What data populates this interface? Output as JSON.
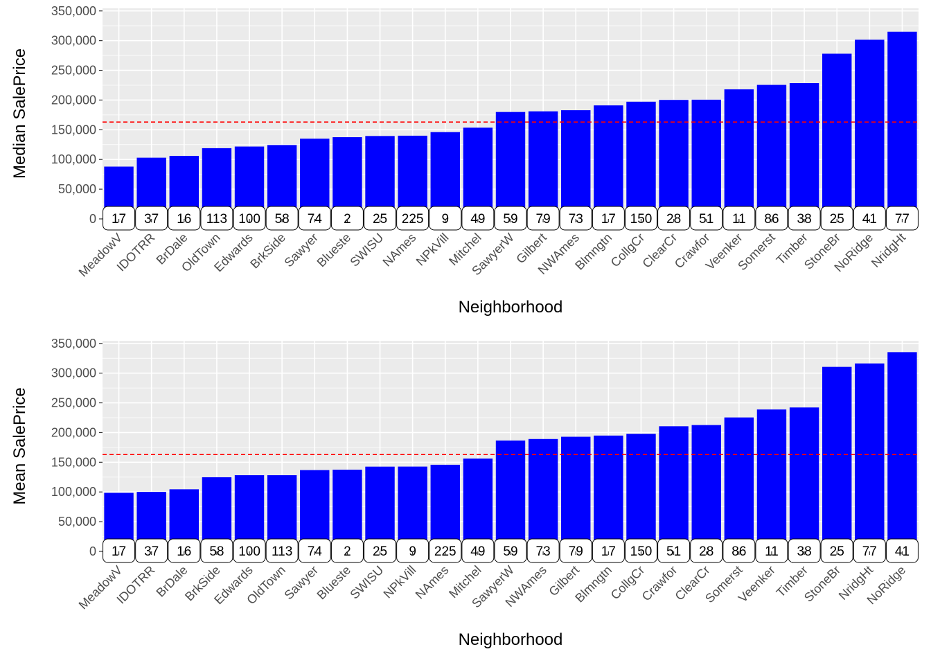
{
  "chart_data": [
    {
      "type": "bar",
      "xlabel": "Neighborhood",
      "ylabel": "Median SalePrice",
      "ylim": [
        0,
        350000
      ],
      "y_ticks": [
        "0",
        "50,000",
        "100,000",
        "150,000",
        "200,000",
        "250,000",
        "300,000",
        "350,000"
      ],
      "y_tick_values": [
        0,
        50000,
        100000,
        150000,
        200000,
        250000,
        300000,
        350000
      ],
      "reference_line": {
        "y": 163000,
        "color": "#ff0000",
        "style": "dashed"
      },
      "bar_color": "#0000ff",
      "grid": true,
      "categories": [
        "MeadowV",
        "IDOTRR",
        "BrDale",
        "OldTown",
        "Edwards",
        "BrkSide",
        "Sawyer",
        "Blueste",
        "SWISU",
        "NAmes",
        "NPkVill",
        "Mitchel",
        "SawyerW",
        "Gilbert",
        "NWAmes",
        "Blmngtn",
        "CollgCr",
        "ClearCr",
        "Crawfor",
        "Veenker",
        "Somerst",
        "Timber",
        "StoneBr",
        "NoRidge",
        "NridgHt"
      ],
      "values": [
        88000,
        103000,
        106000,
        119000,
        121750,
        124300,
        135000,
        137500,
        139500,
        140000,
        146000,
        153500,
        179900,
        181000,
        182900,
        191000,
        197200,
        200250,
        200624,
        218000,
        225500,
        228475,
        278000,
        301500,
        315000
      ],
      "labels": [
        "17",
        "37",
        "16",
        "113",
        "100",
        "58",
        "74",
        "2",
        "25",
        "225",
        "9",
        "49",
        "59",
        "79",
        "73",
        "17",
        "150",
        "28",
        "51",
        "11",
        "86",
        "38",
        "25",
        "41",
        "77"
      ]
    },
    {
      "type": "bar",
      "xlabel": "Neighborhood",
      "ylabel": "Mean SalePrice",
      "ylim": [
        0,
        350000
      ],
      "y_ticks": [
        "0",
        "50,000",
        "100,000",
        "150,000",
        "200,000",
        "250,000",
        "300,000",
        "350,000"
      ],
      "y_tick_values": [
        0,
        50000,
        100000,
        150000,
        200000,
        250000,
        300000,
        350000
      ],
      "reference_line": {
        "y": 163000,
        "color": "#ff0000",
        "style": "dashed"
      },
      "bar_color": "#0000ff",
      "grid": true,
      "categories": [
        "MeadowV",
        "IDOTRR",
        "BrDale",
        "BrkSide",
        "Edwards",
        "OldTown",
        "Sawyer",
        "Blueste",
        "SWISU",
        "NPkVill",
        "NAmes",
        "Mitchel",
        "SawyerW",
        "NWAmes",
        "Gilbert",
        "Blmngtn",
        "CollgCr",
        "Crawfor",
        "ClearCr",
        "Somerst",
        "Veenker",
        "Timber",
        "StoneBr",
        "NridgHt",
        "NoRidge"
      ],
      "values": [
        98600,
        100100,
        104500,
        124800,
        128200,
        128200,
        136800,
        137500,
        142600,
        142700,
        145800,
        156300,
        186600,
        189100,
        192900,
        194900,
        197900,
        210600,
        212600,
        225400,
        238800,
        242200,
        310500,
        316300,
        335300
      ],
      "labels": [
        "17",
        "37",
        "16",
        "58",
        "100",
        "113",
        "74",
        "2",
        "25",
        "9",
        "225",
        "49",
        "59",
        "73",
        "79",
        "17",
        "150",
        "51",
        "28",
        "86",
        "11",
        "38",
        "25",
        "77",
        "41"
      ]
    }
  ]
}
